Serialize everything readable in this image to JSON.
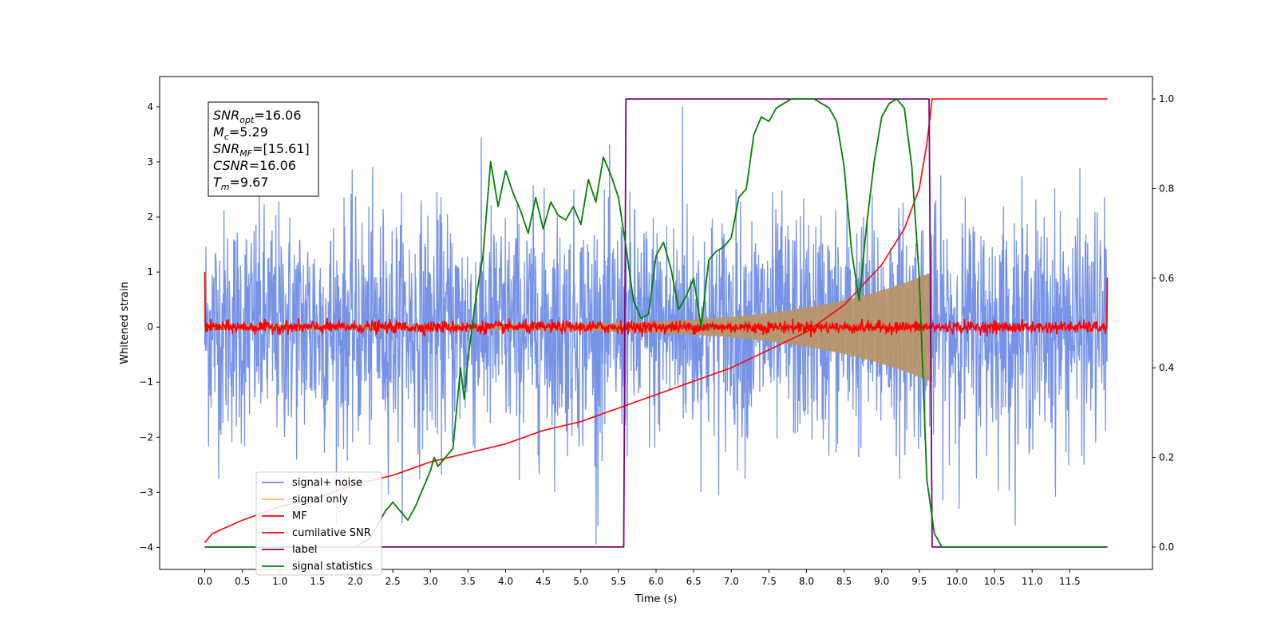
{
  "chart_data": {
    "type": "line",
    "xlabel": "Time (s)",
    "ylabel": "Whitened strain",
    "xlim": [
      -0.6,
      12.6
    ],
    "ylim": [
      -4.4,
      4.55
    ],
    "ylim_right": [
      -0.05,
      1.05
    ],
    "x_ticks": [
      "0.0",
      "0.5",
      "1.0",
      "1.5",
      "2.0",
      "2.5",
      "3.0",
      "3.5",
      "4.0",
      "4.5",
      "5.0",
      "5.5",
      "6.0",
      "6.5",
      "7.0",
      "7.5",
      "8.0",
      "8.5",
      "9.0",
      "9.5",
      "10.0",
      "10.5",
      "11.0",
      "11.5"
    ],
    "y_ticks_left": [
      "4",
      "3",
      "2",
      "1",
      "0",
      "−1",
      "−2",
      "−3",
      "−4"
    ],
    "y_ticks_right": [
      "1.0",
      "0.8",
      "0.6",
      "0.4",
      "0.2",
      "0.0"
    ],
    "grid": false,
    "legend_position": "lower-left",
    "stats_box": {
      "lines": [
        {
          "base": "SNR",
          "sub": "opt",
          "rest": "=16.06"
        },
        {
          "base": "M",
          "sub": "c",
          "rest": "=5.29"
        },
        {
          "base": "SNR",
          "sub": "MF",
          "rest": "=[15.61]"
        },
        {
          "base": "CSNR",
          "sub": "",
          "rest": "=16.06"
        },
        {
          "base": "T",
          "sub": "m",
          "rest": "=9.67"
        }
      ]
    },
    "series": [
      {
        "name": "signal+ noise",
        "color": "#6f8de6",
        "axis": "left",
        "style": "noise band approx ±2.5, peaks to ±3.5",
        "x_range": [
          0,
          12.0
        ]
      },
      {
        "name": "signal only",
        "color": "#f5b95e",
        "axis": "left",
        "style": "chirp envelope growing from 0.05 to 1.0 between t=0 and t=9.67"
      },
      {
        "name": "MF",
        "color": "#ff0000",
        "axis": "left",
        "style": "noise around 0, amplitude ~0.15"
      },
      {
        "name": "cumilative SNR",
        "color": "#ff0000",
        "axis": "right",
        "x": [
          0.0,
          0.1,
          0.5,
          1.0,
          1.5,
          2.0,
          2.5,
          3.0,
          3.5,
          4.0,
          4.5,
          5.0,
          5.5,
          6.0,
          6.5,
          7.0,
          7.5,
          8.0,
          8.5,
          9.0,
          9.3,
          9.5,
          9.6,
          9.67,
          10.0,
          11.0,
          12.0
        ],
        "y": [
          0.01,
          0.03,
          0.06,
          0.09,
          0.11,
          0.14,
          0.16,
          0.19,
          0.21,
          0.23,
          0.26,
          0.28,
          0.31,
          0.34,
          0.37,
          0.4,
          0.44,
          0.48,
          0.54,
          0.63,
          0.71,
          0.8,
          0.9,
          1.0,
          1.0,
          1.0,
          1.0
        ]
      },
      {
        "name": "label",
        "color": "#800080",
        "axis": "right",
        "x": [
          0.0,
          5.57,
          5.6,
          9.63,
          9.67,
          12.0
        ],
        "y": [
          0.0,
          0.0,
          1.0,
          1.0,
          0.0,
          0.0
        ]
      },
      {
        "name": "signal statistics",
        "color": "#008000",
        "axis": "right",
        "x": [
          0.0,
          0.5,
          1.0,
          1.5,
          2.0,
          2.2,
          2.3,
          2.4,
          2.5,
          2.6,
          2.7,
          2.8,
          2.9,
          3.0,
          3.05,
          3.1,
          3.2,
          3.3,
          3.4,
          3.45,
          3.5,
          3.6,
          3.7,
          3.8,
          3.9,
          4.0,
          4.1,
          4.2,
          4.3,
          4.4,
          4.5,
          4.6,
          4.7,
          4.8,
          4.9,
          5.0,
          5.1,
          5.2,
          5.3,
          5.4,
          5.5,
          5.6,
          5.7,
          5.8,
          5.9,
          6.0,
          6.1,
          6.2,
          6.3,
          6.4,
          6.5,
          6.6,
          6.7,
          6.8,
          6.9,
          7.0,
          7.1,
          7.2,
          7.3,
          7.4,
          7.5,
          7.6,
          7.7,
          7.8,
          7.9,
          8.0,
          8.1,
          8.2,
          8.3,
          8.4,
          8.5,
          8.6,
          8.7,
          8.8,
          8.9,
          9.0,
          9.1,
          9.2,
          9.3,
          9.4,
          9.5,
          9.6,
          9.7,
          9.8,
          10.0,
          11.0,
          12.0
        ],
        "y": [
          0.0,
          0.0,
          0.0,
          0.0,
          0.0,
          0.02,
          0.05,
          0.08,
          0.1,
          0.08,
          0.06,
          0.09,
          0.13,
          0.17,
          0.2,
          0.18,
          0.2,
          0.22,
          0.4,
          0.33,
          0.42,
          0.55,
          0.65,
          0.86,
          0.76,
          0.84,
          0.79,
          0.75,
          0.7,
          0.78,
          0.71,
          0.77,
          0.74,
          0.73,
          0.76,
          0.72,
          0.82,
          0.77,
          0.87,
          0.83,
          0.78,
          0.67,
          0.55,
          0.51,
          0.52,
          0.65,
          0.68,
          0.62,
          0.53,
          0.56,
          0.6,
          0.49,
          0.64,
          0.66,
          0.67,
          0.69,
          0.78,
          0.8,
          0.92,
          0.96,
          0.95,
          0.98,
          0.99,
          1.0,
          1.0,
          1.0,
          1.0,
          0.99,
          0.98,
          0.95,
          0.85,
          0.66,
          0.55,
          0.72,
          0.86,
          0.96,
          0.99,
          1.0,
          0.98,
          0.85,
          0.6,
          0.15,
          0.03,
          0.0,
          0.0,
          0.0,
          0.0
        ]
      }
    ]
  }
}
